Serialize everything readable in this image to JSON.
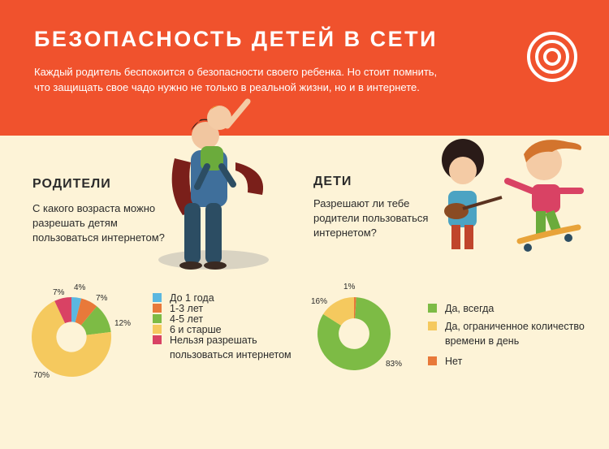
{
  "header": {
    "title": "БЕЗОПАСНОСТЬ ДЕТЕЙ В СЕТИ",
    "intro": "Каждый родитель беспокоится о безопасности своего ребенка. Но стоит помнить, что защищать свое чадо нужно не только в реальной жизни, но и в интернете.",
    "target_icon": "target-icon"
  },
  "parents": {
    "heading": "РОДИТЕЛИ",
    "question": "С какого возраста можно разрешать детям пользоваться интернетом?",
    "legend": [
      {
        "label": "До 1 года",
        "color": "#5bb7e0"
      },
      {
        "label": "1-3 лет",
        "color": "#e8793a"
      },
      {
        "label": "4-5 лет",
        "color": "#7dbb45"
      },
      {
        "label": "6 и старше",
        "color": "#f5c95e"
      },
      {
        "label": "Нельзя разрешать пользоваться интернетом",
        "color": "#d94264"
      }
    ]
  },
  "children": {
    "heading": "ДЕТИ",
    "question": "Разрешают ли тебе родители пользоваться интернетом?",
    "legend": [
      {
        "label": "Да, всегда",
        "color": "#7dbb45"
      },
      {
        "label": "Да, ограниченное количество времени в день",
        "color": "#f5c95e"
      },
      {
        "label": "Нет",
        "color": "#e8793a"
      }
    ]
  },
  "chart_data": [
    {
      "type": "pie",
      "title": "",
      "categories": [
        "До 1 года",
        "1-3 лет",
        "4-5 лет",
        "6 и старше",
        "Нельзя разрешать пользоваться интернетом"
      ],
      "values": [
        4,
        7,
        12,
        70,
        7
      ],
      "labels": [
        "4%",
        "7%",
        "12%",
        "70%",
        "7%"
      ],
      "colors": [
        "#5bb7e0",
        "#e8793a",
        "#7dbb45",
        "#f5c95e",
        "#d94264"
      ]
    },
    {
      "type": "pie",
      "title": "",
      "categories": [
        "Нет",
        "Да, всегда",
        "Да, ограниченное количество времени в день"
      ],
      "values": [
        1,
        83,
        16
      ],
      "labels": [
        "1%",
        "83%",
        "16%"
      ],
      "colors": [
        "#e8793a",
        "#7dbb45",
        "#f5c95e"
      ]
    }
  ]
}
